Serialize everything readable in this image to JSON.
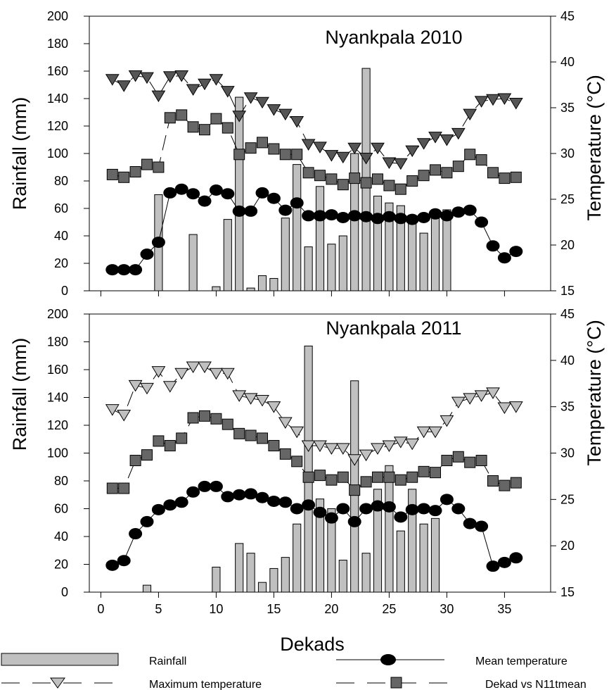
{
  "colors": {
    "rain_fill": "#c0c0c0",
    "max_2010": "#555555",
    "max_2011": "#c0c0c0",
    "dekad_fill": "#666666",
    "mean_fill": "#000000"
  },
  "chart_data": [
    {
      "type": "bar+line",
      "title": "Nyankpala 2010",
      "ylabel_left": "Rainfall (mm)",
      "ylabel_right": "Temperature (°C)",
      "ylim_left": [
        0,
        200
      ],
      "ylim_right": [
        15,
        45
      ],
      "y_left_ticks": [
        "0",
        "20",
        "40",
        "60",
        "80",
        "100",
        "120",
        "140",
        "160",
        "180",
        "200"
      ],
      "y_right_ticks": [
        "15",
        "20",
        "25",
        "30",
        "35",
        "40",
        "45"
      ],
      "xlim": [
        -1,
        39
      ],
      "rainfall": {
        "x": [
          5,
          8,
          10,
          11,
          12,
          13,
          14,
          15,
          16,
          17,
          18,
          19,
          20,
          21,
          22,
          23,
          24,
          25,
          26,
          27,
          28,
          29,
          30
        ],
        "values": [
          70,
          41,
          3,
          52,
          141,
          2,
          11,
          9,
          53,
          92,
          32,
          76,
          34,
          40,
          100,
          162,
          69,
          64,
          62,
          54,
          42,
          55,
          59
        ]
      },
      "max_temp": {
        "x": [
          1,
          2,
          3,
          4,
          5,
          6,
          7,
          8,
          9,
          10,
          11,
          12,
          13,
          14,
          15,
          16,
          17,
          18,
          19,
          20,
          21,
          22,
          23,
          24,
          25,
          26,
          27,
          28,
          29,
          30,
          31,
          32,
          33,
          34,
          35,
          36
        ],
        "values": [
          38.1,
          37.4,
          38.5,
          38.3,
          36.3,
          38.4,
          38.5,
          37.0,
          37.6,
          38.1,
          36.8,
          34.1,
          36.1,
          35.6,
          34.8,
          34.3,
          33.5,
          31.0,
          30.7,
          29.8,
          29.6,
          30.6,
          29.5,
          30.6,
          29.0,
          28.9,
          30.3,
          31.1,
          31.8,
          31.5,
          32.2,
          34.3,
          35.7,
          35.9,
          36.0,
          35.5
        ]
      },
      "dekad_mean": {
        "x": [
          1,
          2,
          3,
          4,
          5,
          6,
          7,
          8,
          9,
          10,
          11,
          12,
          13,
          14,
          15,
          16,
          17,
          18,
          19,
          20,
          21,
          22,
          23,
          24,
          25,
          26,
          27,
          28,
          29,
          30,
          31,
          32,
          33,
          34,
          35,
          36
        ],
        "values": [
          27.7,
          27.4,
          28.0,
          28.8,
          28.5,
          33.9,
          34.2,
          32.9,
          32.6,
          33.8,
          32.8,
          29.9,
          30.6,
          31.2,
          30.5,
          29.9,
          29.9,
          27.9,
          27.6,
          27.2,
          26.6,
          27.3,
          26.8,
          27.2,
          26.5,
          26.1,
          27.0,
          27.6,
          28.2,
          27.9,
          28.6,
          29.9,
          29.3,
          27.9,
          27.3,
          27.4
        ]
      },
      "mean_temp": {
        "x": [
          1,
          2,
          3,
          4,
          5,
          6,
          7,
          8,
          9,
          10,
          11,
          12,
          13,
          14,
          15,
          16,
          17,
          18,
          19,
          20,
          21,
          22,
          23,
          24,
          25,
          26,
          27,
          28,
          29,
          30,
          31,
          32,
          33,
          34,
          35,
          36
        ],
        "values": [
          17.3,
          17.3,
          17.3,
          19.0,
          20.3,
          25.7,
          26.1,
          25.6,
          24.8,
          26.0,
          25.6,
          23.7,
          23.7,
          25.7,
          25.1,
          23.8,
          24.6,
          23.2,
          23.2,
          23.3,
          23.0,
          23.2,
          23.1,
          22.9,
          23.1,
          22.9,
          22.8,
          23.0,
          23.4,
          23.2,
          23.6,
          23.8,
          22.5,
          19.9,
          18.6,
          19.3
        ]
      }
    },
    {
      "type": "bar+line",
      "title": "Nyankpala 2011",
      "ylabel_left": "Rainfall (mm)",
      "ylabel_right": "Temperature (°C)",
      "xlabel": "Dekads",
      "ylim_left": [
        0,
        200
      ],
      "ylim_right": [
        15,
        45
      ],
      "y_left_ticks": [
        "0",
        "20",
        "40",
        "60",
        "80",
        "100",
        "120",
        "140",
        "160",
        "180",
        "200"
      ],
      "y_right_ticks": [
        "15",
        "20",
        "25",
        "30",
        "35",
        "40",
        "45"
      ],
      "x_ticks": [
        "0",
        "5",
        "10",
        "15",
        "20",
        "25",
        "30",
        "35"
      ],
      "xlim": [
        -1,
        39
      ],
      "rainfall": {
        "x": [
          4,
          10,
          12,
          13,
          14,
          15,
          16,
          17,
          18,
          19,
          20,
          21,
          22,
          23,
          24,
          25,
          26,
          27,
          28,
          29
        ],
        "values": [
          5,
          18,
          35,
          28,
          7,
          17,
          25,
          49,
          177,
          67,
          60,
          23,
          152,
          28,
          74,
          91,
          44,
          74,
          49,
          53
        ]
      },
      "max_temp": {
        "x": [
          1,
          2,
          3,
          4,
          5,
          6,
          7,
          8,
          9,
          10,
          11,
          12,
          13,
          14,
          15,
          16,
          17,
          18,
          19,
          20,
          21,
          22,
          23,
          24,
          25,
          26,
          27,
          28,
          29,
          30,
          31,
          32,
          33,
          34,
          35,
          36
        ],
        "values": [
          34.7,
          34.1,
          37.3,
          37.0,
          38.8,
          37.2,
          38.6,
          39.3,
          39.3,
          38.6,
          38.6,
          36.2,
          35.9,
          35.7,
          35.0,
          33.3,
          32.3,
          30.8,
          30.8,
          30.5,
          30.5,
          29.3,
          29.8,
          30.5,
          30.8,
          31.2,
          31.0,
          32.3,
          32.3,
          33.5,
          35.5,
          35.9,
          36.2,
          36.5,
          34.9,
          35.0
        ]
      },
      "dekad_mean": {
        "x": [
          1,
          2,
          3,
          4,
          5,
          6,
          7,
          8,
          9,
          10,
          11,
          12,
          13,
          14,
          15,
          16,
          17,
          18,
          19,
          20,
          21,
          22,
          23,
          24,
          25,
          26,
          27,
          28,
          29,
          30,
          31,
          32,
          33,
          34,
          35,
          36
        ],
        "values": [
          26.2,
          26.2,
          29.2,
          29.8,
          31.3,
          30.8,
          31.6,
          33.8,
          34.0,
          33.7,
          33.1,
          32.1,
          31.9,
          31.6,
          30.8,
          29.9,
          29.1,
          27.4,
          27.6,
          27.1,
          27.4,
          26.0,
          26.9,
          27.4,
          27.4,
          27.1,
          27.4,
          28.0,
          27.9,
          29.2,
          29.6,
          29.0,
          29.2,
          27.0,
          26.5,
          26.8
        ]
      },
      "mean_temp": {
        "x": [
          1,
          2,
          3,
          4,
          5,
          6,
          7,
          8,
          9,
          10,
          11,
          12,
          13,
          14,
          15,
          16,
          17,
          18,
          19,
          20,
          21,
          22,
          23,
          24,
          25,
          26,
          27,
          28,
          29,
          30,
          31,
          32,
          33,
          34,
          35,
          36
        ],
        "values": [
          17.9,
          18.4,
          21.3,
          22.6,
          23.9,
          24.4,
          24.7,
          25.8,
          26.4,
          26.4,
          25.3,
          25.5,
          25.6,
          25.2,
          24.8,
          24.7,
          24.0,
          24.4,
          23.6,
          23.0,
          24.0,
          22.6,
          24.0,
          24.3,
          24.2,
          23.1,
          23.9,
          24.0,
          23.8,
          25.0,
          24.0,
          22.4,
          22.1,
          17.8,
          18.2,
          18.7
        ]
      }
    }
  ],
  "legend": {
    "rainfall": "Rainfall",
    "max_temp": "Maximum temperature",
    "mean_temp": "Mean temperature",
    "dekad_mean": "Dekad vs N11tmean"
  }
}
